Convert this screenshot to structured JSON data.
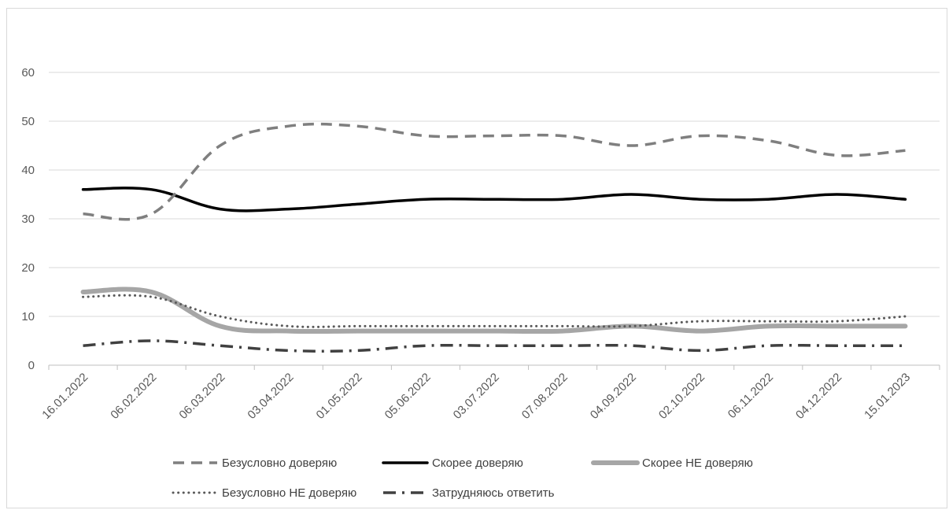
{
  "chart_data": {
    "type": "line",
    "title": "",
    "xlabel": "",
    "ylabel": "",
    "ylim": [
      0,
      60
    ],
    "yticks": [
      0,
      10,
      20,
      30,
      40,
      50,
      60
    ],
    "grid": "horizontal",
    "legend_position": "bottom",
    "categories": [
      "16.01.2022",
      "06.02.2022",
      "06.03.2022",
      "03.04.2022",
      "01.05.2022",
      "05.06.2022",
      "03.07.2022",
      "07.08.2022",
      "04.09.2022",
      "02.10.2022",
      "06.11.2022",
      "04.12.2022",
      "15.01.2023"
    ],
    "series": [
      {
        "name": "Безусловно доверяю",
        "values": [
          31,
          31,
          45,
          49,
          49,
          47,
          47,
          47,
          45,
          47,
          46,
          43,
          44
        ],
        "color": "#7f7f7f",
        "style": "dashed"
      },
      {
        "name": "Скорее доверяю",
        "values": [
          36,
          36,
          32,
          32,
          33,
          34,
          34,
          34,
          35,
          34,
          34,
          35,
          34
        ],
        "color": "#000000",
        "style": "solid"
      },
      {
        "name": "Скорее НЕ доверяю",
        "values": [
          15,
          15,
          8,
          7,
          7,
          7,
          7,
          7,
          8,
          7,
          8,
          8,
          8
        ],
        "color": "#a6a6a6",
        "style": "solid-thick"
      },
      {
        "name": "Безусловно НЕ доверяю",
        "values": [
          14,
          14,
          10,
          8,
          8,
          8,
          8,
          8,
          8,
          9,
          9,
          9,
          10
        ],
        "color": "#595959",
        "style": "dotted"
      },
      {
        "name": "Затрудняюсь ответить",
        "values": [
          4,
          5,
          4,
          3,
          3,
          4,
          4,
          4,
          4,
          3,
          4,
          4,
          4
        ],
        "color": "#404040",
        "style": "dash-dot"
      }
    ]
  }
}
